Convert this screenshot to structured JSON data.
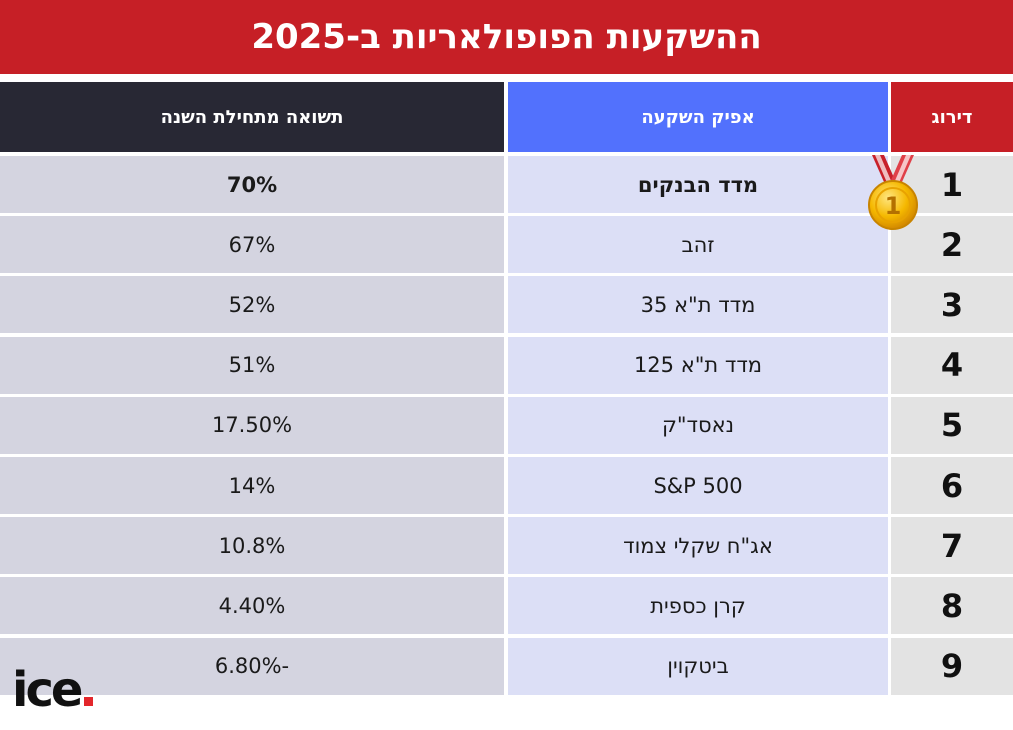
{
  "title": "ההשקעות הפופולאריות ב-2025",
  "headers": {
    "rank": "דירוג",
    "investment": "אפיק השקעה",
    "return": "תשואה מתחילת השנה"
  },
  "rows": [
    {
      "rank": "1",
      "investment": "מדד הבנקים",
      "return": "70%"
    },
    {
      "rank": "2",
      "investment": "זהב",
      "return": "67%"
    },
    {
      "rank": "3",
      "investment": "מדד ת\"א 35",
      "return": "52%"
    },
    {
      "rank": "4",
      "investment": "מדד ת\"א 125",
      "return": "51%"
    },
    {
      "rank": "5",
      "investment": "נאסד\"ק",
      "return": "17.50%"
    },
    {
      "rank": "6",
      "investment": "S&P 500",
      "return": "14%"
    },
    {
      "rank": "7",
      "investment": "אג\"ח שקלי צמוד",
      "return": "10.8%"
    },
    {
      "rank": "8",
      "investment": "קרן כספית",
      "return": "4.40%"
    },
    {
      "rank": "9",
      "investment": "ביטקוין",
      "return": "6.80%-"
    }
  ],
  "chart_data": {
    "type": "table",
    "title": "ההשקעות הפופולאריות ב-2025",
    "columns": [
      "דירוג",
      "אפיק השקעה",
      "תשואה מתחילת השנה"
    ],
    "rows": [
      [
        "1",
        "מדד הבנקים",
        "70%"
      ],
      [
        "2",
        "זהב",
        "67%"
      ],
      [
        "3",
        "מדד ת\"א 35",
        "52%"
      ],
      [
        "4",
        "מדד ת\"א 125",
        "51%"
      ],
      [
        "5",
        "נאסד\"ק",
        "17.50%"
      ],
      [
        "6",
        "S&P 500",
        "14%"
      ],
      [
        "7",
        "אג\"ח שקלי צמוד",
        "10.8%"
      ],
      [
        "8",
        "קרן כספית",
        "4.40%"
      ],
      [
        "9",
        "ביטקוין",
        "6.80%-"
      ]
    ]
  },
  "medal": {
    "label": "1",
    "icon": "gold-medal-icon"
  },
  "logo": {
    "text": "ice"
  },
  "colors": {
    "title_bg": "#c61f26",
    "header_return_bg": "#282834",
    "header_investment_bg": "#5271fd",
    "header_rank_bg": "#c61f26",
    "logo_dot": "#e3262b"
  }
}
